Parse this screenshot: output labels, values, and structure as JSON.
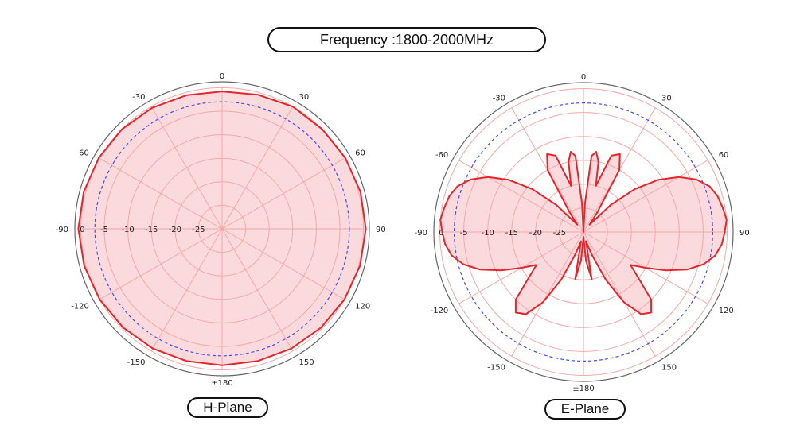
{
  "header": {
    "title": "Frequency :1800-2000MHz"
  },
  "colors": {
    "pattern": "#e8242b",
    "fill": "#fadadd",
    "grid": "#f4a8a8",
    "reference": "#4a4aee",
    "outer": "#666666"
  },
  "chart_data": [
    {
      "type": "polar",
      "title": "H-Plane",
      "angle_tick_labels": [
        "0",
        "30",
        "60",
        "90",
        "120",
        "150",
        "±180",
        "150",
        "120",
        "90",
        "60",
        "30"
      ],
      "radial_tick_labels": [
        "0",
        "-5",
        "-10",
        "-15",
        "-20",
        "-25"
      ],
      "radial_range_db": [
        -30,
        0
      ],
      "reference_db": -3,
      "series": [
        {
          "angles": [
            0,
            15,
            30,
            45,
            60,
            75,
            90,
            105,
            120,
            135,
            150,
            165,
            180,
            195,
            210,
            225,
            240,
            255,
            270,
            285,
            300,
            315,
            330,
            345
          ],
          "values_db": [
            -0.8,
            -0.5,
            0,
            0,
            0.2,
            0.4,
            0.5,
            0.3,
            0,
            -0.3,
            -0.6,
            -0.9,
            -1,
            -0.9,
            -0.6,
            -0.3,
            0,
            0.3,
            0.5,
            0.4,
            0.2,
            0,
            -0.3,
            -0.6
          ]
        }
      ]
    },
    {
      "type": "polar",
      "title": "E-Plane",
      "angle_tick_labels": [
        "0",
        "30",
        "60",
        "90",
        "120",
        "150",
        "±180",
        "150",
        "120",
        "90",
        "60",
        "30"
      ],
      "radial_tick_labels": [
        "0",
        "-5",
        "-10",
        "-15",
        "-20",
        "-25"
      ],
      "radial_range_db": [
        -30,
        0
      ],
      "reference_db": -3,
      "series": [
        {
          "angles": [
            0,
            3,
            6,
            9,
            12,
            15,
            20,
            25,
            30,
            35,
            40,
            45,
            50,
            55,
            60,
            65,
            70,
            75,
            80,
            85,
            90,
            95,
            100,
            105,
            110,
            115,
            120,
            125,
            130,
            135,
            140,
            145,
            150,
            155,
            160,
            165,
            170,
            175,
            180,
            185,
            190,
            195,
            200,
            205,
            210,
            215,
            220,
            225,
            230,
            235,
            240,
            245,
            250,
            255,
            260,
            265,
            270,
            275,
            280,
            285,
            290,
            295,
            300,
            305,
            310,
            315,
            320,
            325,
            330,
            335,
            340,
            345,
            348,
            351,
            354,
            357
          ],
          "values_db": [
            -30,
            -24,
            -14,
            -13,
            -15,
            -20,
            -13,
            -12,
            -15,
            -25,
            -28,
            -22,
            -16,
            -11,
            -7,
            -4,
            -2,
            -1,
            -0.5,
            0,
            -0.5,
            -1,
            -2,
            -4,
            -7,
            -11,
            -15,
            -18,
            -15,
            -10,
            -8,
            -9,
            -13,
            -19,
            -25,
            -28,
            -20,
            -24,
            -29,
            -24,
            -20,
            -28,
            -25,
            -19,
            -13,
            -9,
            -8,
            -10,
            -15,
            -18,
            -15,
            -11,
            -7,
            -4,
            -2,
            -1,
            -0.5,
            0,
            -0.5,
            -1,
            -2,
            -4,
            -7,
            -11,
            -16,
            -22,
            -28,
            -25,
            -15,
            -12,
            -13,
            -20,
            -15,
            -13,
            -14,
            -24
          ]
        }
      ]
    }
  ]
}
